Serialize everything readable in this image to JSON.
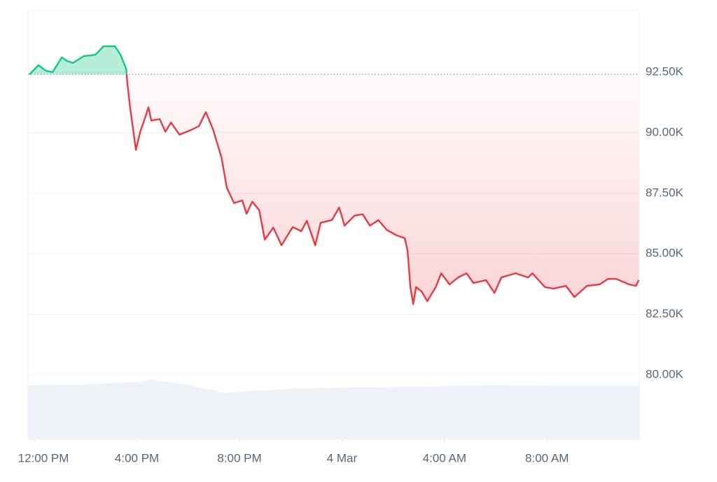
{
  "chart_data": {
    "type": "line",
    "baseline": 92410,
    "up_color": "#16c784",
    "down_color": "#ea3943",
    "grid": true,
    "x": [
      -0.19,
      0.16,
      0.44,
      0.71,
      1.07,
      1.28,
      1.5,
      1.94,
      2.16,
      2.38,
      2.7,
      2.92,
      3.14,
      3.36,
      3.58,
      3.63,
      3.74,
      3.96,
      4.13,
      4.34,
      4.45,
      4.56,
      4.89,
      5.11,
      5.33,
      5.66,
      6.09,
      6.42,
      6.69,
      6.97,
      7.3,
      7.51,
      7.79,
      8.11,
      8.28,
      8.5,
      8.77,
      8.99,
      9.32,
      9.64,
      10.08,
      10.41,
      10.63,
      10.96,
      11.17,
      11.61,
      11.89,
      12.1,
      12.49,
      12.81,
      13.09,
      13.42,
      13.74,
      14.13,
      14.45,
      14.56,
      14.67,
      14.78,
      14.89,
      15.11,
      15.33,
      15.66,
      15.87,
      16.2,
      16.53,
      16.86,
      17.13,
      17.62,
      17.95,
      18.22,
      18.77,
      19.26,
      19.43,
      19.92,
      20.25,
      20.74,
      21.07,
      21.56,
      22.05,
      22.38,
      22.7,
      23.2,
      23.47,
      23.58
    ],
    "values": [
      92410,
      92790,
      92560,
      92500,
      93110,
      92960,
      92880,
      93170,
      93190,
      93220,
      93570,
      93570,
      93570,
      93220,
      92640,
      92010,
      91000,
      89290,
      90040,
      90680,
      91050,
      90500,
      90560,
      90040,
      90420,
      89920,
      90100,
      90270,
      90850,
      90130,
      88970,
      87720,
      87090,
      87200,
      86650,
      87150,
      86800,
      85580,
      86080,
      85350,
      86100,
      85930,
      86360,
      85350,
      86280,
      86390,
      86910,
      86160,
      86570,
      86630,
      86160,
      86390,
      85990,
      85760,
      85640,
      85120,
      83620,
      82920,
      83620,
      83440,
      83040,
      83620,
      84190,
      83730,
      84020,
      84190,
      83790,
      83910,
      83380,
      84020,
      84190,
      84020,
      84190,
      83620,
      83560,
      83670,
      83210,
      83670,
      83730,
      83960,
      83960,
      83730,
      83670,
      83910
    ],
    "xlim": [
      -0.25,
      23.6
    ],
    "ylim": [
      77335,
      95047
    ],
    "xticks": [
      {
        "value": 0,
        "label": "12:00 PM"
      },
      {
        "value": 4,
        "label": "4:00 PM"
      },
      {
        "value": 8,
        "label": "8:00 PM"
      },
      {
        "value": 12,
        "label": "4 Mar"
      },
      {
        "value": 16,
        "label": "4:00 AM"
      },
      {
        "value": 20,
        "label": "8:00 AM"
      }
    ],
    "yticks": [
      {
        "value": 80000,
        "label": "80.00K"
      },
      {
        "value": 82500,
        "label": "82.50K"
      },
      {
        "value": 85000,
        "label": "85.00K"
      },
      {
        "value": 87500,
        "label": "87.50K"
      },
      {
        "value": 90000,
        "label": "90.00K"
      },
      {
        "value": 92500,
        "label": "92.50K"
      }
    ]
  }
}
